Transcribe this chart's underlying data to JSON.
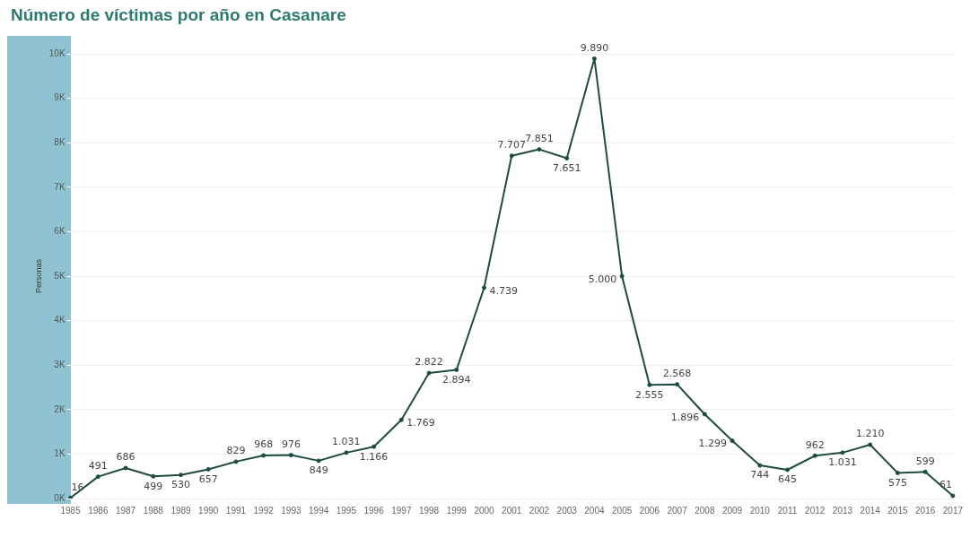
{
  "chart_data": {
    "type": "line",
    "title": "Número de víctimas por año en Casanare",
    "ylabel": "Personas",
    "categories": [
      "1985",
      "1986",
      "1987",
      "1988",
      "1989",
      "1990",
      "1991",
      "1992",
      "1993",
      "1994",
      "1995",
      "1996",
      "1997",
      "1998",
      "1999",
      "2000",
      "2001",
      "2002",
      "2003",
      "2004",
      "2005",
      "2006",
      "2007",
      "2008",
      "2009",
      "2010",
      "2011",
      "2012",
      "2013",
      "2014",
      "2015",
      "2016",
      "2017"
    ],
    "series": [
      {
        "color": "#1f4a43",
        "values": [
          16,
          491,
          686,
          499,
          530,
          657,
          829,
          968,
          976,
          849,
          1031,
          1166,
          1769,
          2822,
          2894,
          4739,
          7707,
          7851,
          7651,
          9890,
          5000,
          2555,
          2568,
          1896,
          1299,
          744,
          645,
          962,
          1031,
          1210,
          575,
          599,
          61
        ],
        "value_labels": [
          "16",
          "491",
          "686",
          "499",
          "530",
          "657",
          "829",
          "968",
          "976",
          "849",
          "1.031",
          "1.166",
          "1.769",
          "2.822",
          "2.894",
          "4.739",
          "7.707",
          "7.851",
          "7.651",
          "9.890",
          "5.000",
          "2.555",
          "2.568",
          "1.896",
          "1.299",
          "744",
          "645",
          "962",
          "1.031",
          "1.210",
          "575",
          "599",
          "61"
        ]
      }
    ],
    "ylim": [
      0,
      10000
    ],
    "yticks": [
      {
        "value": 0,
        "label": "0K"
      },
      {
        "value": 1000,
        "label": "1K"
      },
      {
        "value": 2000,
        "label": "2K"
      },
      {
        "value": 3000,
        "label": "3K"
      },
      {
        "value": 4000,
        "label": "4K"
      },
      {
        "value": 5000,
        "label": "5K"
      },
      {
        "value": 6000,
        "label": "6K"
      },
      {
        "value": 7000,
        "label": "7K"
      },
      {
        "value": 8000,
        "label": "8K"
      },
      {
        "value": 9000,
        "label": "9K"
      },
      {
        "value": 10000,
        "label": "10K"
      }
    ],
    "grid": "y",
    "legend": false,
    "marker": "circle",
    "line_style": "solid"
  }
}
